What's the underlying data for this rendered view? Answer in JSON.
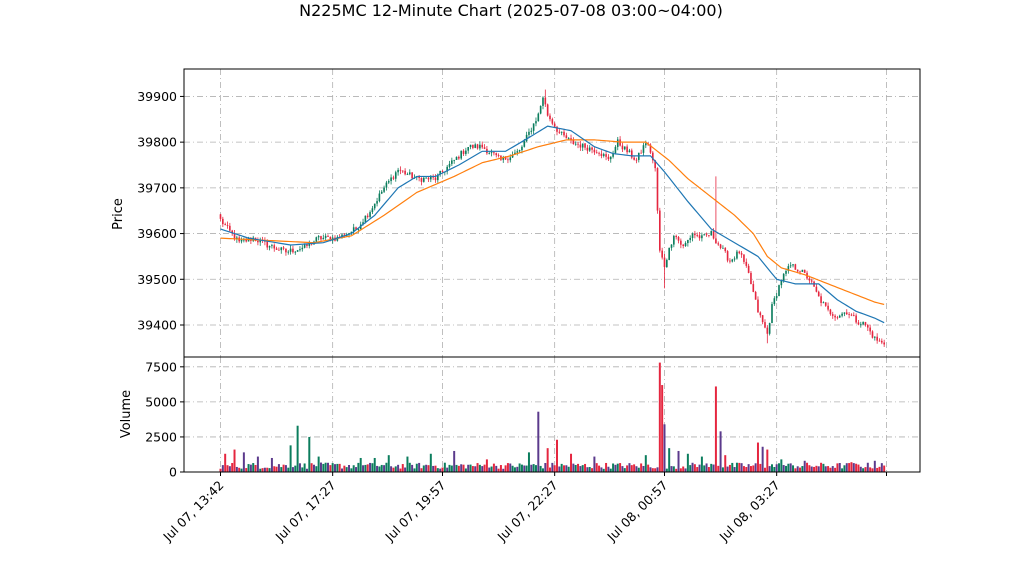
{
  "chart_data": {
    "type": "candlestick",
    "title": "N225MC 12-Minute Chart (2025-07-08 03:00~04:00)",
    "colors": {
      "up": "#0b7d5d",
      "down": "#e5263f",
      "ma_short": "#1f77b4",
      "ma_long": "#ff7f0e",
      "grid": "#b0b0b0",
      "volume_alt": "#5b3a8c"
    },
    "price_panel": {
      "ylabel": "Price",
      "ylim": [
        39330,
        39960
      ],
      "yticks": [
        "39400",
        "39500",
        "39600",
        "39700",
        "39800",
        "39900"
      ],
      "close_anchors": [
        [
          0,
          39630
        ],
        [
          3,
          39610
        ],
        [
          8,
          39580
        ],
        [
          14,
          39590
        ],
        [
          20,
          39575
        ],
        [
          28,
          39560
        ],
        [
          36,
          39570
        ],
        [
          42,
          39590
        ],
        [
          50,
          39590
        ],
        [
          58,
          39610
        ],
        [
          64,
          39650
        ],
        [
          70,
          39700
        ],
        [
          76,
          39740
        ],
        [
          84,
          39720
        ],
        [
          92,
          39720
        ],
        [
          98,
          39750
        ],
        [
          106,
          39790
        ],
        [
          112,
          39790
        ],
        [
          120,
          39760
        ],
        [
          128,
          39780
        ],
        [
          132,
          39820
        ],
        [
          136,
          39860
        ],
        [
          138,
          39900
        ],
        [
          140,
          39860
        ],
        [
          145,
          39820
        ],
        [
          150,
          39800
        ],
        [
          156,
          39790
        ],
        [
          162,
          39780
        ],
        [
          166,
          39760
        ],
        [
          170,
          39800
        ],
        [
          174,
          39780
        ],
        [
          178,
          39760
        ],
        [
          182,
          39800
        ],
        [
          184,
          39780
        ],
        [
          186,
          39740
        ],
        [
          188,
          39560
        ],
        [
          190,
          39530
        ],
        [
          194,
          39600
        ],
        [
          198,
          39570
        ],
        [
          202,
          39600
        ],
        [
          206,
          39590
        ],
        [
          210,
          39600
        ],
        [
          214,
          39570
        ],
        [
          218,
          39540
        ],
        [
          222,
          39560
        ],
        [
          226,
          39510
        ],
        [
          230,
          39430
        ],
        [
          234,
          39380
        ],
        [
          236,
          39440
        ],
        [
          240,
          39500
        ],
        [
          244,
          39530
        ],
        [
          248,
          39520
        ],
        [
          252,
          39500
        ],
        [
          256,
          39460
        ],
        [
          260,
          39430
        ],
        [
          264,
          39420
        ],
        [
          268,
          39430
        ],
        [
          272,
          39410
        ],
        [
          276,
          39400
        ],
        [
          280,
          39370
        ],
        [
          283,
          39360
        ]
      ],
      "spikes": [
        [
          190,
          39480,
          "low"
        ],
        [
          212,
          39725,
          "high"
        ],
        [
          139,
          39915,
          "high"
        ],
        [
          234,
          39360,
          "low"
        ]
      ],
      "ma_short_anchors": [
        [
          0,
          39610
        ],
        [
          12,
          39590
        ],
        [
          30,
          39575
        ],
        [
          44,
          39580
        ],
        [
          56,
          39600
        ],
        [
          66,
          39640
        ],
        [
          76,
          39700
        ],
        [
          84,
          39725
        ],
        [
          92,
          39725
        ],
        [
          102,
          39750
        ],
        [
          112,
          39780
        ],
        [
          122,
          39780
        ],
        [
          132,
          39810
        ],
        [
          140,
          39835
        ],
        [
          150,
          39825
        ],
        [
          160,
          39790
        ],
        [
          168,
          39775
        ],
        [
          176,
          39770
        ],
        [
          184,
          39770
        ],
        [
          190,
          39735
        ],
        [
          200,
          39670
        ],
        [
          210,
          39610
        ],
        [
          220,
          39580
        ],
        [
          230,
          39550
        ],
        [
          238,
          39500
        ],
        [
          246,
          39490
        ],
        [
          256,
          39490
        ],
        [
          264,
          39455
        ],
        [
          272,
          39430
        ],
        [
          280,
          39415
        ],
        [
          284,
          39405
        ]
      ],
      "ma_long_anchors": [
        [
          0,
          39590
        ],
        [
          20,
          39585
        ],
        [
          40,
          39580
        ],
        [
          56,
          39595
        ],
        [
          70,
          39640
        ],
        [
          84,
          39690
        ],
        [
          100,
          39725
        ],
        [
          112,
          39755
        ],
        [
          124,
          39770
        ],
        [
          136,
          39790
        ],
        [
          148,
          39805
        ],
        [
          160,
          39805
        ],
        [
          172,
          39800
        ],
        [
          182,
          39800
        ],
        [
          192,
          39760
        ],
        [
          200,
          39720
        ],
        [
          210,
          39680
        ],
        [
          220,
          39640
        ],
        [
          228,
          39600
        ],
        [
          234,
          39550
        ],
        [
          240,
          39525
        ],
        [
          250,
          39510
        ],
        [
          260,
          39490
        ],
        [
          270,
          39470
        ],
        [
          280,
          39450
        ],
        [
          284,
          39445
        ]
      ]
    },
    "volume_panel": {
      "ylabel": "Volume",
      "ylim": [
        0,
        8200
      ],
      "yticks": [
        "0",
        "2500",
        "5000",
        "7500"
      ],
      "base_level": 450,
      "spikes": [
        [
          2,
          1300
        ],
        [
          6,
          1600
        ],
        [
          10,
          1400
        ],
        [
          16,
          1100
        ],
        [
          22,
          1000
        ],
        [
          30,
          1900
        ],
        [
          33,
          3300
        ],
        [
          38,
          2500
        ],
        [
          42,
          1100
        ],
        [
          60,
          1000
        ],
        [
          66,
          1000
        ],
        [
          72,
          1200
        ],
        [
          80,
          1100
        ],
        [
          90,
          1300
        ],
        [
          100,
          1500
        ],
        [
          114,
          900
        ],
        [
          132,
          1400
        ],
        [
          136,
          4300
        ],
        [
          140,
          1700
        ],
        [
          144,
          2300
        ],
        [
          150,
          1300
        ],
        [
          160,
          1100
        ],
        [
          182,
          1200
        ],
        [
          188,
          7800
        ],
        [
          189,
          6200
        ],
        [
          190,
          3400
        ],
        [
          192,
          1700
        ],
        [
          196,
          1500
        ],
        [
          200,
          1300
        ],
        [
          206,
          1100
        ],
        [
          212,
          6100
        ],
        [
          214,
          2900
        ],
        [
          216,
          1200
        ],
        [
          230,
          2100
        ],
        [
          232,
          1800
        ],
        [
          234,
          1600
        ],
        [
          240,
          900
        ],
        [
          250,
          800
        ],
        [
          270,
          700
        ],
        [
          280,
          800
        ]
      ]
    },
    "n_bars": 285,
    "x_tick_labels": [
      "Jul 07, 13:42",
      "Jul 07, 17:27",
      "Jul 07, 19:57",
      "Jul 07, 22:27",
      "Jul 08, 00:57",
      "Jul 08, 03:27"
    ],
    "x_tick_bar_index": [
      0,
      48,
      95,
      143,
      190,
      238
    ],
    "x_last_tick_index": 285
  }
}
